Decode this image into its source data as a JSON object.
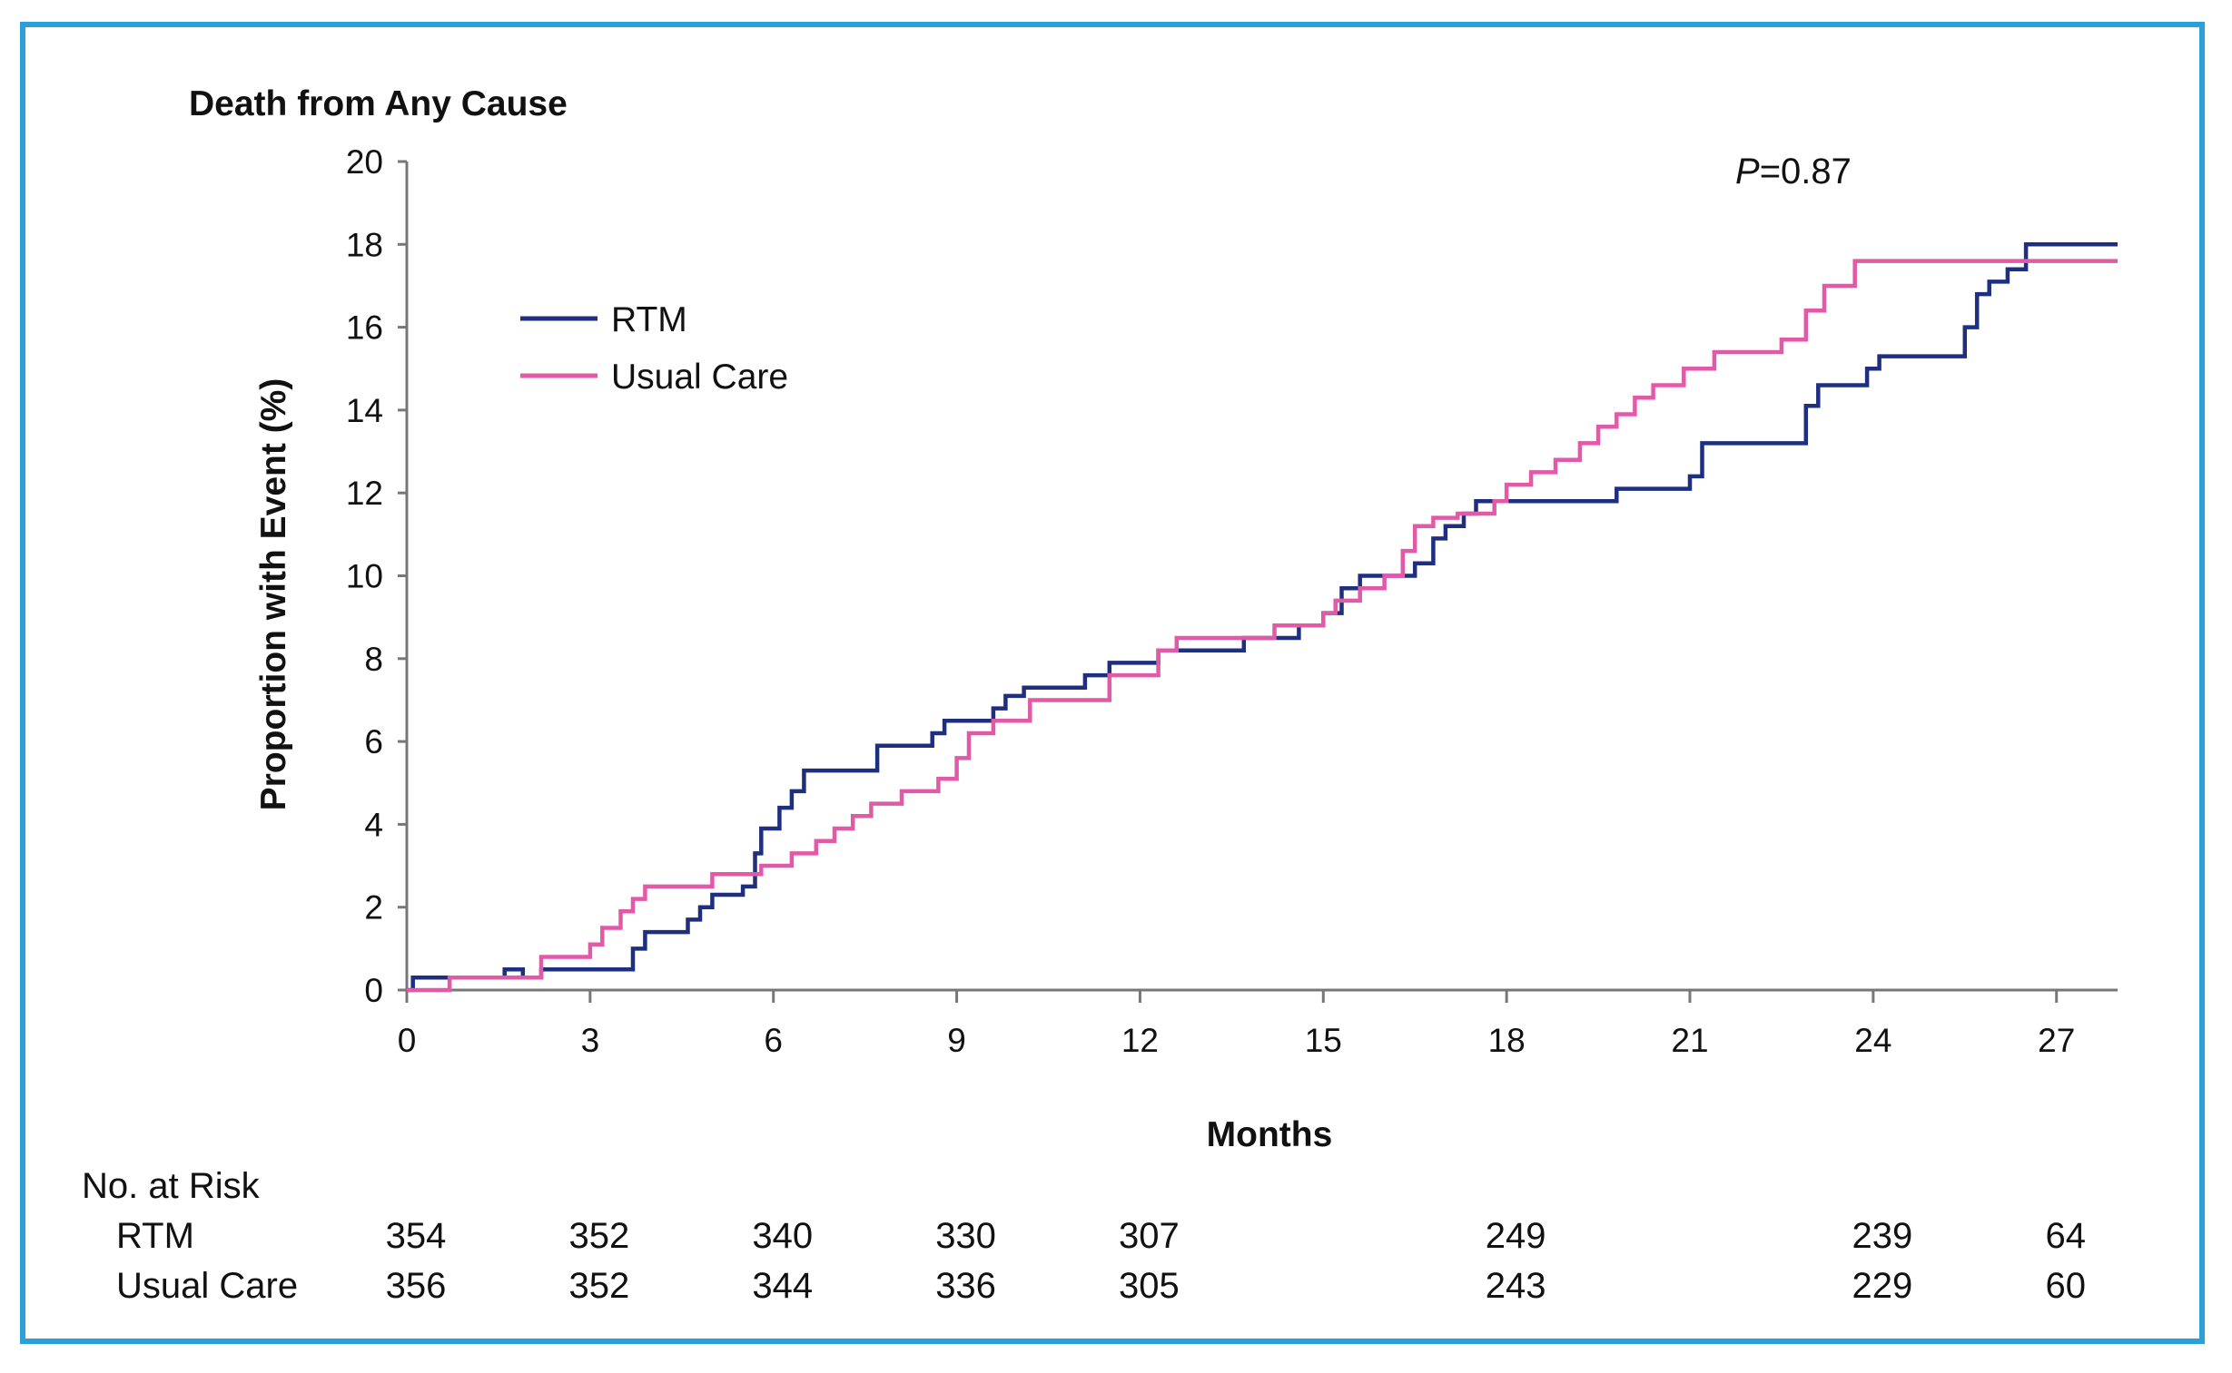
{
  "frame_color": "#2a9fd8",
  "chart_data": {
    "type": "line",
    "title": "Death from Any Cause",
    "xlabel": "Months",
    "ylabel": "Proportion with Event (%)",
    "xlim": [
      0,
      28
    ],
    "ylim": [
      0,
      20
    ],
    "xticks": [
      0,
      3,
      6,
      9,
      12,
      15,
      18,
      21,
      24,
      27
    ],
    "yticks": [
      0,
      2,
      4,
      6,
      8,
      10,
      12,
      14,
      16,
      18,
      20
    ],
    "annotation": {
      "italic": "P",
      "rest": "=0.87"
    },
    "legend_position": "top-left",
    "series": [
      {
        "name": "RTM",
        "color": "#1f2f80",
        "step": true,
        "x": [
          0,
          0.1,
          0.8,
          1.6,
          1.9,
          2.2,
          3.7,
          3.9,
          4.1,
          4.6,
          4.8,
          5.0,
          5.5,
          5.7,
          5.8,
          6.1,
          6.3,
          6.5,
          6.8,
          7.7,
          7.9,
          8.6,
          8.8,
          9.6,
          9.8,
          10.1,
          10.4,
          11.1,
          11.5,
          12.3,
          13.7,
          14.6,
          15.0,
          15.3,
          15.6,
          16.3,
          16.5,
          16.8,
          17.0,
          17.3,
          17.5,
          18.2,
          19.8,
          21.0,
          21.2,
          22.7,
          22.9,
          23.1,
          23.9,
          24.1,
          25.5,
          25.7,
          25.9,
          26.2,
          26.5,
          28.0
        ],
        "y": [
          0,
          0.3,
          0.3,
          0.5,
          0.3,
          0.5,
          1.0,
          1.4,
          1.4,
          1.7,
          2.0,
          2.3,
          2.5,
          3.3,
          3.9,
          4.4,
          4.8,
          5.3,
          5.3,
          5.9,
          5.9,
          6.2,
          6.5,
          6.8,
          7.1,
          7.3,
          7.3,
          7.6,
          7.9,
          8.2,
          8.5,
          8.8,
          9.1,
          9.7,
          10.0,
          10.0,
          10.3,
          10.9,
          11.2,
          11.5,
          11.8,
          11.8,
          12.1,
          12.4,
          13.2,
          13.2,
          14.1,
          14.6,
          15.0,
          15.3,
          16.0,
          16.8,
          17.1,
          17.4,
          18.0,
          18.0
        ]
      },
      {
        "name": "Usual Care",
        "color": "#e05aa8",
        "step": true,
        "x": [
          0,
          0.7,
          0.9,
          2.2,
          3.0,
          3.2,
          3.5,
          3.7,
          3.9,
          4.3,
          5.0,
          5.8,
          6.3,
          6.7,
          7.0,
          7.3,
          7.6,
          8.1,
          8.7,
          9.0,
          9.2,
          9.6,
          10.2,
          11.5,
          12.3,
          12.6,
          14.2,
          15.0,
          15.2,
          15.6,
          16.0,
          16.3,
          16.5,
          16.8,
          17.2,
          17.8,
          18.0,
          18.4,
          18.8,
          19.2,
          19.5,
          19.8,
          20.1,
          20.4,
          20.9,
          21.4,
          22.5,
          22.9,
          23.2,
          23.7,
          28.0
        ],
        "y": [
          0,
          0.3,
          0.3,
          0.8,
          1.1,
          1.5,
          1.9,
          2.2,
          2.5,
          2.5,
          2.8,
          3.0,
          3.3,
          3.6,
          3.9,
          4.2,
          4.5,
          4.8,
          5.1,
          5.6,
          6.2,
          6.5,
          7.0,
          7.6,
          8.2,
          8.5,
          8.8,
          9.1,
          9.4,
          9.7,
          10.0,
          10.6,
          11.2,
          11.4,
          11.5,
          11.8,
          12.2,
          12.5,
          12.8,
          13.2,
          13.6,
          13.9,
          14.3,
          14.6,
          15.0,
          15.4,
          15.7,
          16.4,
          17.0,
          17.6,
          17.6
        ]
      }
    ],
    "risk_table": {
      "title": "No. at Risk",
      "months": [
        0,
        3,
        6,
        9,
        12,
        18,
        24,
        27
      ],
      "rows": [
        {
          "label": "RTM",
          "values": [
            "354",
            "352",
            "340",
            "330",
            "307",
            "249",
            "239",
            "64"
          ]
        },
        {
          "label": "Usual Care",
          "values": [
            "356",
            "352",
            "344",
            "336",
            "305",
            "243",
            "229",
            "60"
          ]
        }
      ]
    }
  }
}
